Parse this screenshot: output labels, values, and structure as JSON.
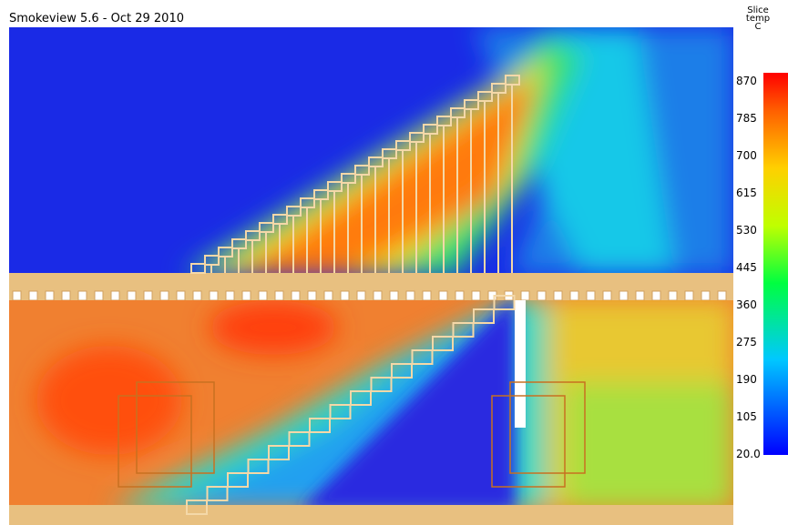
{
  "header": {
    "title": "Smokeview 5.6 - Oct 29 2010"
  },
  "colorbar": {
    "heading": [
      "Slice",
      "temp",
      "C"
    ],
    "labels": [
      "870",
      "785",
      "700",
      "615",
      "530",
      "445",
      "360",
      "275",
      "190",
      "105",
      "20.0"
    ]
  }
}
